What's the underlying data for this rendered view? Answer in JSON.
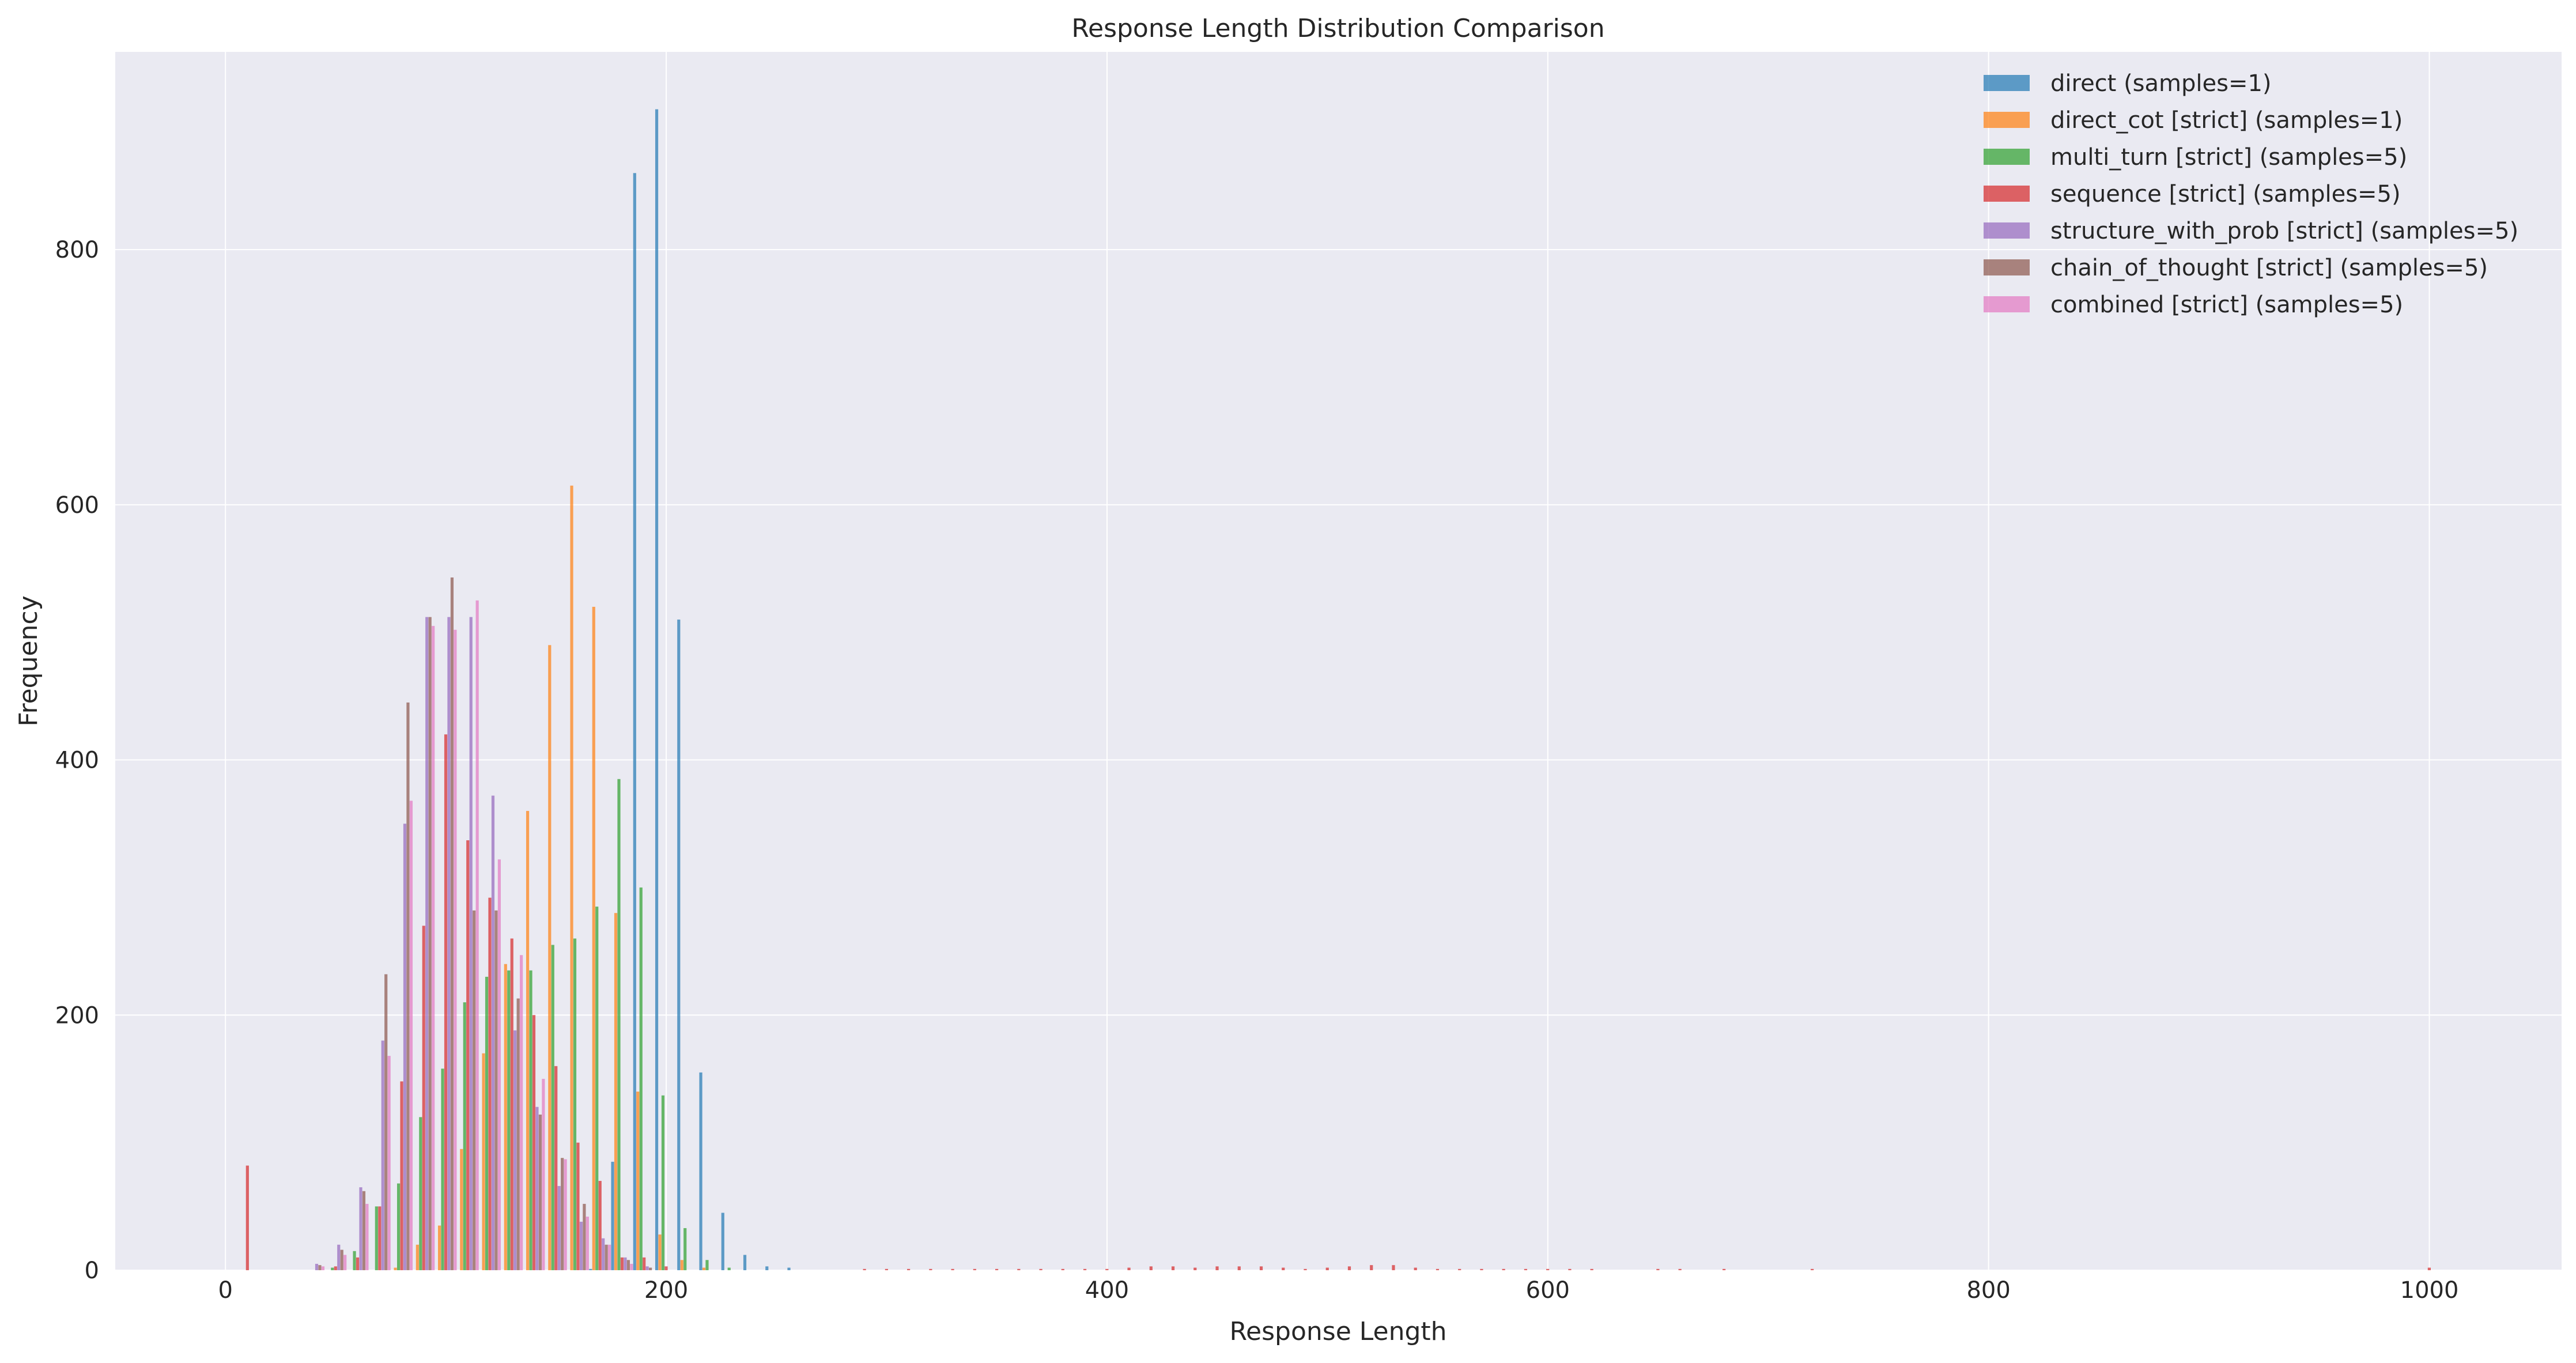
{
  "chart_data": {
    "type": "bar",
    "subtype": "histogram",
    "title": "Response Length Distribution Comparison",
    "xlabel": "Response Length",
    "ylabel": "Frequency",
    "xlim": [
      -50,
      1060
    ],
    "ylim": [
      0,
      955
    ],
    "xticks": [
      0,
      200,
      400,
      600,
      800,
      1000
    ],
    "yticks": [
      0,
      200,
      400,
      600,
      800
    ],
    "grid": true,
    "legend_position": "top-right",
    "bin_start": 5,
    "bin_width": 10,
    "series": [
      {
        "name": "direct (samples=1)",
        "color": "#1f77b4",
        "bins": [
          [
            16,
            1
          ],
          [
            17,
            85
          ],
          [
            18,
            860
          ],
          [
            19,
            910
          ],
          [
            20,
            510
          ],
          [
            21,
            155
          ],
          [
            22,
            45
          ],
          [
            23,
            12
          ],
          [
            24,
            3
          ],
          [
            25,
            2
          ]
        ]
      },
      {
        "name": "direct_cot [strict] (samples=1)",
        "color": "#ff7f0e",
        "bins": [
          [
            7,
            2
          ],
          [
            8,
            20
          ],
          [
            9,
            35
          ],
          [
            10,
            95
          ],
          [
            11,
            170
          ],
          [
            12,
            240
          ],
          [
            13,
            360
          ],
          [
            14,
            490
          ],
          [
            15,
            615
          ],
          [
            16,
            520
          ],
          [
            17,
            280
          ],
          [
            18,
            140
          ],
          [
            19,
            28
          ],
          [
            20,
            8
          ],
          [
            21,
            2
          ]
        ]
      },
      {
        "name": "multi_turn [strict] (samples=5)",
        "color": "#2ca02c",
        "bins": [
          [
            4,
            2
          ],
          [
            5,
            15
          ],
          [
            6,
            50
          ],
          [
            7,
            68
          ],
          [
            8,
            120
          ],
          [
            9,
            158
          ],
          [
            10,
            210
          ],
          [
            11,
            230
          ],
          [
            12,
            235
          ],
          [
            13,
            235
          ],
          [
            14,
            255
          ],
          [
            15,
            260
          ],
          [
            16,
            285
          ],
          [
            17,
            385
          ],
          [
            18,
            300
          ],
          [
            19,
            137
          ],
          [
            20,
            33
          ],
          [
            21,
            8
          ],
          [
            22,
            2
          ]
        ]
      },
      {
        "name": "sequence [strict] (samples=5)",
        "color": "#d62728",
        "bins": [
          [
            0,
            82
          ],
          [
            4,
            3
          ],
          [
            5,
            10
          ],
          [
            6,
            50
          ],
          [
            7,
            148
          ],
          [
            8,
            270
          ],
          [
            9,
            420
          ],
          [
            10,
            337
          ],
          [
            11,
            292
          ],
          [
            12,
            260
          ],
          [
            13,
            200
          ],
          [
            14,
            160
          ],
          [
            15,
            100
          ],
          [
            16,
            70
          ],
          [
            17,
            10
          ],
          [
            18,
            10
          ],
          [
            19,
            3
          ],
          [
            28,
            1
          ],
          [
            29,
            1
          ],
          [
            30,
            1
          ],
          [
            31,
            1
          ],
          [
            32,
            1
          ],
          [
            33,
            1
          ],
          [
            34,
            1
          ],
          [
            35,
            1
          ],
          [
            36,
            1
          ],
          [
            37,
            1
          ],
          [
            38,
            1
          ],
          [
            39,
            1
          ],
          [
            40,
            2
          ],
          [
            41,
            3
          ],
          [
            42,
            3
          ],
          [
            43,
            2
          ],
          [
            44,
            3
          ],
          [
            45,
            3
          ],
          [
            46,
            3
          ],
          [
            47,
            2
          ],
          [
            48,
            1
          ],
          [
            49,
            2
          ],
          [
            50,
            3
          ],
          [
            51,
            4
          ],
          [
            52,
            4
          ],
          [
            53,
            2
          ],
          [
            54,
            1
          ],
          [
            55,
            1
          ],
          [
            56,
            1
          ],
          [
            57,
            1
          ],
          [
            58,
            1
          ],
          [
            59,
            1
          ],
          [
            60,
            1
          ],
          [
            61,
            1
          ],
          [
            64,
            1
          ],
          [
            65,
            1
          ],
          [
            67,
            1
          ],
          [
            71,
            1
          ],
          [
            99,
            2
          ]
        ]
      },
      {
        "name": "structure_with_prob [strict] (samples=5)",
        "color": "#9467bd",
        "bins": [
          [
            3,
            5
          ],
          [
            4,
            20
          ],
          [
            5,
            65
          ],
          [
            6,
            180
          ],
          [
            7,
            350
          ],
          [
            8,
            512
          ],
          [
            9,
            512
          ],
          [
            10,
            512
          ],
          [
            11,
            372
          ],
          [
            12,
            188
          ],
          [
            13,
            128
          ],
          [
            14,
            66
          ],
          [
            15,
            38
          ],
          [
            16,
            25
          ],
          [
            17,
            10
          ],
          [
            18,
            3
          ]
        ]
      },
      {
        "name": "chain_of_thought [strict] (samples=5)",
        "color": "#8c564b",
        "bins": [
          [
            3,
            4
          ],
          [
            4,
            16
          ],
          [
            5,
            62
          ],
          [
            6,
            232
          ],
          [
            7,
            445
          ],
          [
            8,
            512
          ],
          [
            9,
            543
          ],
          [
            10,
            282
          ],
          [
            11,
            282
          ],
          [
            12,
            213
          ],
          [
            13,
            122
          ],
          [
            14,
            88
          ],
          [
            15,
            52
          ],
          [
            16,
            20
          ],
          [
            17,
            8
          ],
          [
            18,
            2
          ]
        ]
      },
      {
        "name": "combined [strict] (samples=5)",
        "color": "#e377c2",
        "bins": [
          [
            3,
            3
          ],
          [
            4,
            12
          ],
          [
            5,
            52
          ],
          [
            6,
            168
          ],
          [
            7,
            368
          ],
          [
            8,
            505
          ],
          [
            9,
            502
          ],
          [
            10,
            525
          ],
          [
            11,
            322
          ],
          [
            12,
            247
          ],
          [
            13,
            150
          ],
          [
            14,
            87
          ],
          [
            15,
            42
          ],
          [
            16,
            20
          ],
          [
            17,
            5
          ]
        ]
      }
    ]
  }
}
